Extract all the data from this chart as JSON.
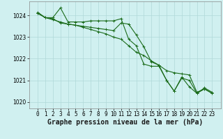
{
  "background_color": "#d0f0f0",
  "grid_color": "#b0d8d8",
  "line_color": "#1a6b1a",
  "xlabel": "Graphe pression niveau de la mer (hPa)",
  "xlabel_fontsize": 7,
  "ylim": [
    1019.7,
    1024.65
  ],
  "yticks": [
    1020,
    1021,
    1022,
    1023,
    1024
  ],
  "xticks": [
    0,
    1,
    2,
    3,
    4,
    5,
    6,
    7,
    8,
    9,
    10,
    11,
    12,
    13,
    14,
    15,
    16,
    17,
    18,
    19,
    20,
    21,
    22,
    23
  ],
  "series1_x": [
    0,
    1,
    2,
    3,
    4,
    5,
    6,
    7,
    8,
    9,
    10,
    11,
    12,
    13,
    14,
    15,
    16,
    17,
    18,
    19,
    20,
    21,
    22,
    23
  ],
  "series1_y": [
    1024.1,
    1023.9,
    1023.9,
    1024.35,
    1023.7,
    1023.7,
    1023.7,
    1023.75,
    1023.75,
    1023.75,
    1023.75,
    1023.85,
    1022.9,
    1022.6,
    1021.75,
    1021.65,
    1021.65,
    1021.0,
    1020.5,
    1021.1,
    1021.0,
    1020.4,
    1020.6,
    1020.4
  ],
  "series2_x": [
    0,
    1,
    2,
    3,
    4,
    5,
    6,
    7,
    8,
    9,
    10,
    11,
    12,
    13,
    14,
    15,
    16,
    17,
    18,
    19,
    20,
    21,
    22,
    23
  ],
  "series2_y": [
    1024.1,
    1023.9,
    1023.85,
    1023.65,
    1023.6,
    1023.55,
    1023.5,
    1023.45,
    1023.4,
    1023.35,
    1023.3,
    1023.65,
    1023.6,
    1023.1,
    1022.55,
    1021.85,
    1021.7,
    1021.45,
    1021.35,
    1021.3,
    1021.25,
    1020.45,
    1020.6,
    1020.4
  ],
  "series3_x": [
    0,
    1,
    2,
    3,
    4,
    5,
    6,
    7,
    8,
    9,
    10,
    11,
    12,
    13,
    14,
    15,
    16,
    17,
    18,
    19,
    20,
    21,
    22,
    23
  ],
  "series3_y": [
    1024.15,
    1023.9,
    1023.8,
    1023.7,
    1023.6,
    1023.55,
    1023.45,
    1023.35,
    1023.25,
    1023.15,
    1023.0,
    1022.9,
    1022.6,
    1022.3,
    1022.15,
    1021.9,
    1021.7,
    1021.0,
    1020.5,
    1021.15,
    1020.7,
    1020.4,
    1020.65,
    1020.45
  ],
  "marker": "+",
  "markersize": 3,
  "linewidth": 0.8,
  "tick_fontsize": 5.5,
  "ytick_fontsize": 5.5
}
